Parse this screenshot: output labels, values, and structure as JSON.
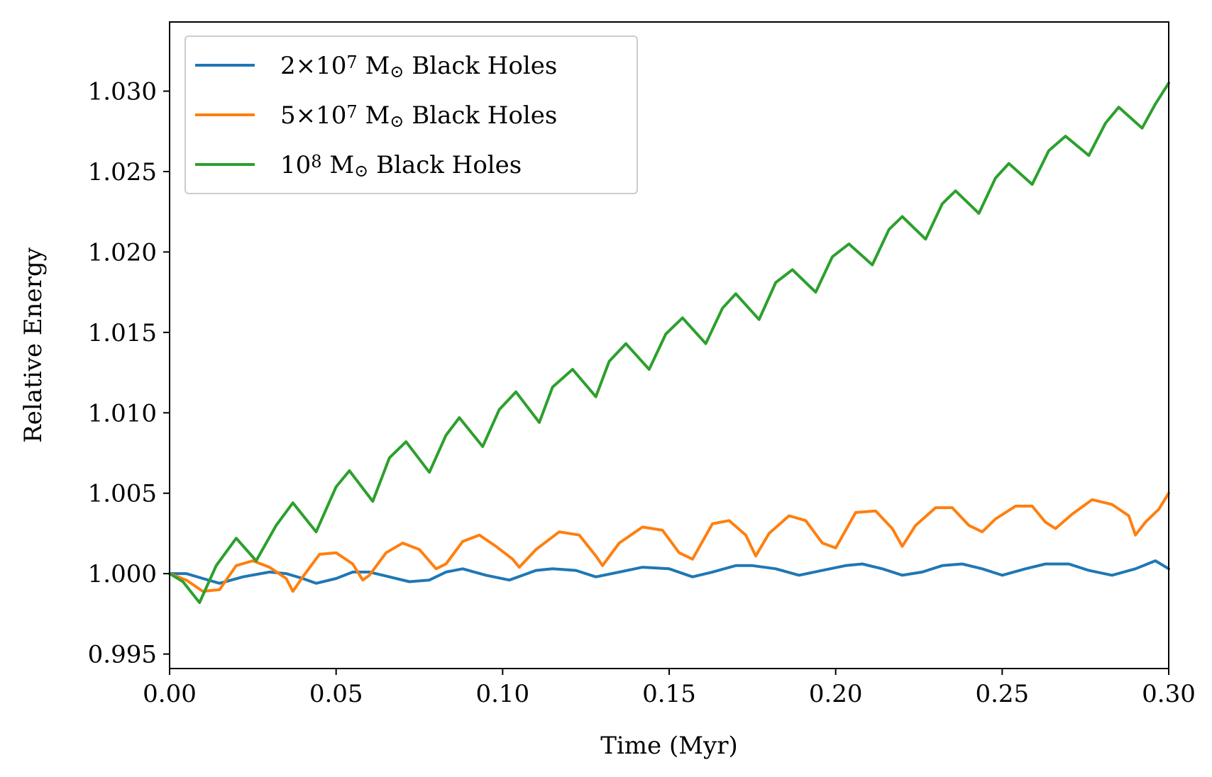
{
  "chart_data": {
    "type": "line",
    "title": "",
    "xlabel": "Time (Myr)",
    "ylabel": "Relative Energy",
    "xlim": [
      0.0,
      0.3
    ],
    "ylim": [
      0.9941,
      1.0343
    ],
    "xticks": [
      0.0,
      0.05,
      0.1,
      0.15,
      0.2,
      0.25,
      0.3
    ],
    "xtick_labels": [
      "0.00",
      "0.05",
      "0.10",
      "0.15",
      "0.20",
      "0.25",
      "0.30"
    ],
    "yticks": [
      0.995,
      1.0,
      1.005,
      1.01,
      1.015,
      1.02,
      1.025,
      1.03
    ],
    "ytick_labels": [
      "0.995",
      "1.000",
      "1.005",
      "1.010",
      "1.015",
      "1.020",
      "1.025",
      "1.030"
    ],
    "grid": false,
    "legend_position": "upper-left",
    "series": [
      {
        "name": "2×10⁷ M☉ Black Holes",
        "legend": {
          "prefix": "2×10",
          "sup": "7",
          "suffix": " M",
          "sub": "⊙",
          "tail": " Black Holes"
        },
        "color": "#1f77b4",
        "x": [
          0.0,
          0.005,
          0.01,
          0.015,
          0.022,
          0.03,
          0.035,
          0.04,
          0.044,
          0.05,
          0.055,
          0.06,
          0.066,
          0.072,
          0.078,
          0.083,
          0.088,
          0.095,
          0.102,
          0.11,
          0.115,
          0.122,
          0.128,
          0.135,
          0.142,
          0.15,
          0.157,
          0.163,
          0.17,
          0.175,
          0.182,
          0.189,
          0.196,
          0.203,
          0.208,
          0.214,
          0.22,
          0.226,
          0.232,
          0.238,
          0.244,
          0.25,
          0.257,
          0.263,
          0.27,
          0.276,
          0.283,
          0.29,
          0.296,
          0.3
        ],
        "values": [
          1.0,
          1.0,
          0.9997,
          0.9994,
          0.9998,
          1.0001,
          1.0,
          0.9997,
          0.9994,
          0.9997,
          1.0001,
          1.0001,
          0.9998,
          0.9995,
          0.9996,
          1.0001,
          1.0003,
          0.9999,
          0.9996,
          1.0002,
          1.0003,
          1.0002,
          0.9998,
          1.0001,
          1.0004,
          1.0003,
          0.9998,
          1.0001,
          1.0005,
          1.0005,
          1.0003,
          0.9999,
          1.0002,
          1.0005,
          1.0006,
          1.0003,
          0.9999,
          1.0001,
          1.0005,
          1.0006,
          1.0003,
          0.9999,
          1.0003,
          1.0006,
          1.0006,
          1.0002,
          0.9999,
          1.0003,
          1.0008,
          1.0003
        ]
      },
      {
        "name": "5×10⁷ M☉ Black Holes",
        "legend": {
          "prefix": "5×10",
          "sup": "7",
          "suffix": " M",
          "sub": "⊙",
          "tail": " Black Holes"
        },
        "color": "#ff7f0e",
        "x": [
          0.0,
          0.005,
          0.01,
          0.015,
          0.02,
          0.025,
          0.03,
          0.035,
          0.037,
          0.04,
          0.045,
          0.05,
          0.055,
          0.058,
          0.06,
          0.065,
          0.07,
          0.075,
          0.08,
          0.083,
          0.088,
          0.093,
          0.098,
          0.103,
          0.105,
          0.11,
          0.117,
          0.123,
          0.128,
          0.13,
          0.135,
          0.142,
          0.148,
          0.153,
          0.157,
          0.163,
          0.168,
          0.173,
          0.176,
          0.18,
          0.186,
          0.191,
          0.196,
          0.2,
          0.206,
          0.212,
          0.217,
          0.22,
          0.224,
          0.23,
          0.235,
          0.24,
          0.244,
          0.248,
          0.254,
          0.259,
          0.263,
          0.266,
          0.271,
          0.277,
          0.283,
          0.288,
          0.29,
          0.293,
          0.297,
          0.3
        ],
        "values": [
          1.0,
          0.9996,
          0.9989,
          0.999,
          1.0005,
          1.0008,
          1.0004,
          0.9997,
          0.9989,
          0.9998,
          1.0012,
          1.0013,
          1.0006,
          0.9996,
          0.9999,
          1.0013,
          1.0019,
          1.0015,
          1.0003,
          1.0006,
          1.002,
          1.0024,
          1.0017,
          1.0009,
          1.0004,
          1.0015,
          1.0026,
          1.0024,
          1.0011,
          1.0005,
          1.0019,
          1.0029,
          1.0027,
          1.0013,
          1.0009,
          1.0031,
          1.0033,
          1.0024,
          1.0011,
          1.0025,
          1.0036,
          1.0033,
          1.0019,
          1.0016,
          1.0038,
          1.0039,
          1.0028,
          1.0017,
          1.003,
          1.0041,
          1.0041,
          1.003,
          1.0026,
          1.0034,
          1.0042,
          1.0042,
          1.0032,
          1.0028,
          1.0037,
          1.0046,
          1.0043,
          1.0036,
          1.0024,
          1.0032,
          1.004,
          1.005
        ]
      },
      {
        "name": "10⁸ M☉ Black Holes",
        "legend": {
          "prefix": "10",
          "sup": "8",
          "suffix": " M",
          "sub": "⊙",
          "tail": " Black Holes"
        },
        "color": "#2ca02c",
        "x": [
          0.0,
          0.004,
          0.009,
          0.014,
          0.02,
          0.026,
          0.032,
          0.037,
          0.044,
          0.05,
          0.054,
          0.061,
          0.066,
          0.071,
          0.078,
          0.083,
          0.087,
          0.094,
          0.099,
          0.104,
          0.111,
          0.115,
          0.121,
          0.128,
          0.132,
          0.137,
          0.144,
          0.149,
          0.154,
          0.161,
          0.166,
          0.17,
          0.177,
          0.182,
          0.187,
          0.194,
          0.199,
          0.204,
          0.211,
          0.216,
          0.22,
          0.227,
          0.232,
          0.236,
          0.243,
          0.248,
          0.252,
          0.259,
          0.264,
          0.269,
          0.276,
          0.281,
          0.285,
          0.292,
          0.296,
          0.3
        ],
        "values": [
          1.0,
          0.9995,
          0.9982,
          1.0005,
          1.0022,
          1.0008,
          1.003,
          1.0044,
          1.0026,
          1.0054,
          1.0064,
          1.0045,
          1.0072,
          1.0082,
          1.0063,
          1.0086,
          1.0097,
          1.0079,
          1.0102,
          1.0113,
          1.0094,
          1.0116,
          1.0127,
          1.011,
          1.0132,
          1.0143,
          1.0127,
          1.0149,
          1.0159,
          1.0143,
          1.0165,
          1.0174,
          1.0158,
          1.0181,
          1.0189,
          1.0175,
          1.0197,
          1.0205,
          1.0192,
          1.0214,
          1.0222,
          1.0208,
          1.023,
          1.0238,
          1.0224,
          1.0246,
          1.0255,
          1.0242,
          1.0263,
          1.0272,
          1.026,
          1.028,
          1.029,
          1.0277,
          1.0292,
          1.0305
        ]
      }
    ]
  }
}
